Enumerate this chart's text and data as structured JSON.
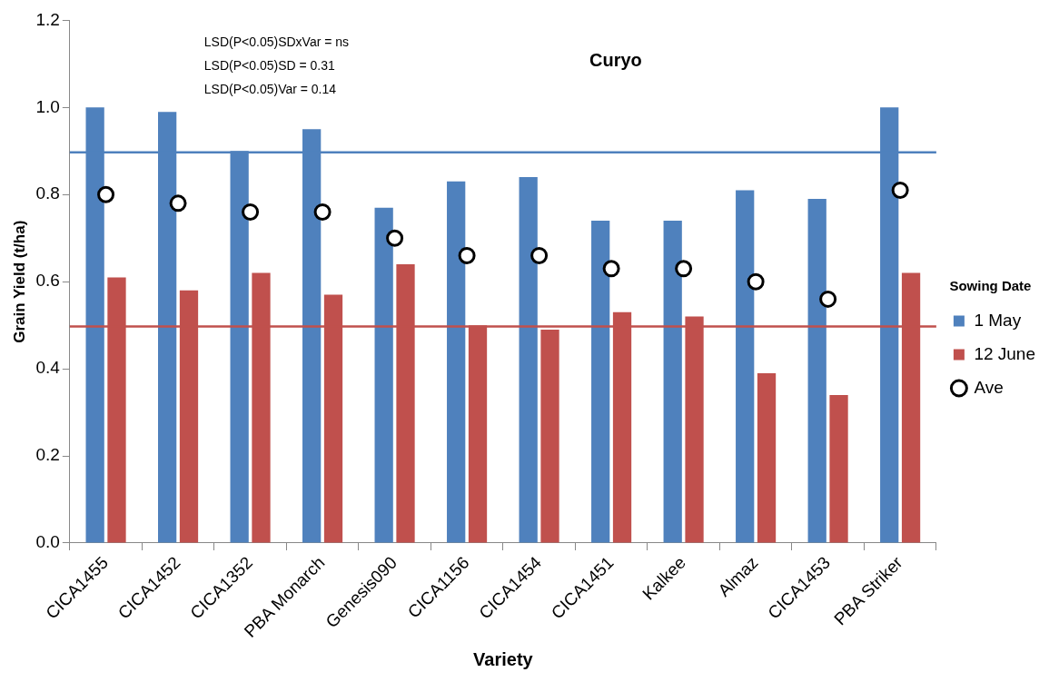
{
  "chart_data": {
    "type": "bar",
    "title": "Curyo",
    "xlabel": "Variety",
    "ylabel": "Grain Yield (t/ha)",
    "legend_title": "Sowing Date",
    "categories": [
      "CICA1455",
      "CICA1452",
      "CICA1352",
      "PBA Monarch",
      "Genesis090",
      "CICA1156",
      "CICA1454",
      "CICA1451",
      "Kalkee",
      "Almaz",
      "CICA1453",
      "PBA Striker"
    ],
    "series": [
      {
        "name": "1 May",
        "color": "#4f81bd",
        "values": [
          1.0,
          0.99,
          0.9,
          0.95,
          0.77,
          0.83,
          0.84,
          0.74,
          0.74,
          0.81,
          0.79,
          1.0
        ]
      },
      {
        "name": "12 June",
        "color": "#c0504d",
        "values": [
          0.61,
          0.58,
          0.62,
          0.57,
          0.64,
          0.5,
          0.49,
          0.53,
          0.52,
          0.39,
          0.34,
          0.62
        ]
      },
      {
        "name": "Ave",
        "type": "scatter",
        "marker": "circle",
        "color": "#000000",
        "x": [
          "CICA1455",
          "CICA1452",
          "CICA1352",
          "PBA Monarch",
          "Genesis090",
          "CICA1156",
          "CICA1454",
          "CICA1451",
          "Kalkee",
          "Almaz",
          "CICA1453",
          "PBA Striker"
        ],
        "values": [
          0.8,
          0.78,
          0.76,
          0.76,
          0.7,
          0.66,
          0.66,
          0.63,
          0.63,
          0.6,
          0.56,
          0.81
        ]
      }
    ],
    "ylim": [
      0,
      1.2
    ],
    "yticks": [
      {
        "value": 0,
        "label": "0.0"
      },
      {
        "value": 0.2,
        "label": "0.2"
      },
      {
        "value": 0.4,
        "label": "0.4"
      },
      {
        "value": 0.6,
        "label": "0.6"
      },
      {
        "value": 0.8,
        "label": "0.8"
      },
      {
        "value": 1,
        "label": "1.0"
      },
      {
        "value": 1.2,
        "label": "1.2"
      }
    ],
    "ref_lines": [
      {
        "axis": "y",
        "value": 0.897,
        "color": "#4f81bd"
      },
      {
        "axis": "y",
        "value": 0.497,
        "color": "#c0504d"
      }
    ],
    "annotations": [
      "LSD(P<0.05)SDxVar = ns",
      "LSD(P<0.05)SD = 0.31",
      "LSD(P<0.05)Var = 0.14"
    ],
    "grid": false,
    "legend": "right"
  }
}
